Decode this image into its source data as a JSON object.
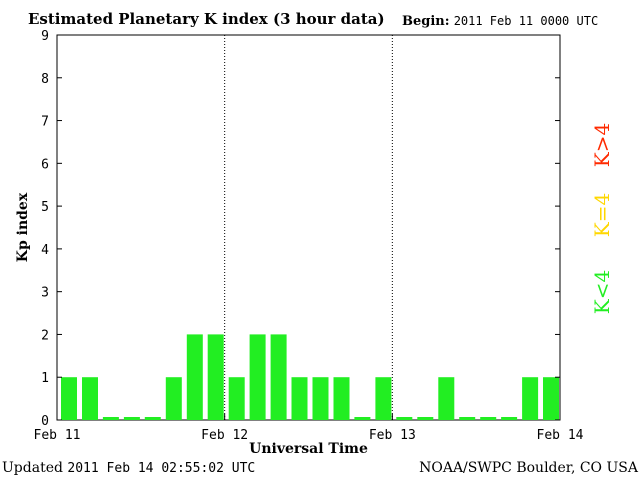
{
  "header": {
    "title": "Estimated Planetary K index (3 hour data)",
    "begin_label": "Begin:",
    "begin_value": "2011 Feb 11 0000 UTC"
  },
  "footer": {
    "updated_label": "Updated",
    "updated_value": "2011 Feb 14 02:55:02 UTC",
    "credit": "NOAA/SWPC Boulder, CO USA"
  },
  "legend": [
    {
      "label": "K>4",
      "color": "#ff2a00"
    },
    {
      "label": "K=4",
      "color": "#ffd700"
    },
    {
      "label": "K<4",
      "color": "#22ee22"
    }
  ],
  "chart_data": {
    "type": "bar",
    "title": "Estimated Planetary K index (3 hour data)",
    "xlabel": "Universal Time",
    "ylabel": "Kp index",
    "ylim": [
      0,
      9
    ],
    "yticks": [
      0,
      1,
      2,
      3,
      4,
      5,
      6,
      7,
      8,
      9
    ],
    "xticks": [
      "Feb 11",
      "Feb 12",
      "Feb 13",
      "Feb 14"
    ],
    "bar_interval_hours": 3,
    "bar_color": "#22ee22",
    "values": [
      1,
      1,
      0,
      0,
      0,
      1,
      2,
      2,
      1,
      2,
      2,
      1,
      1,
      1,
      0,
      1,
      0,
      0,
      1,
      0,
      0,
      0,
      1,
      1
    ],
    "day_separators": [
      "Feb 12",
      "Feb 13"
    ]
  }
}
